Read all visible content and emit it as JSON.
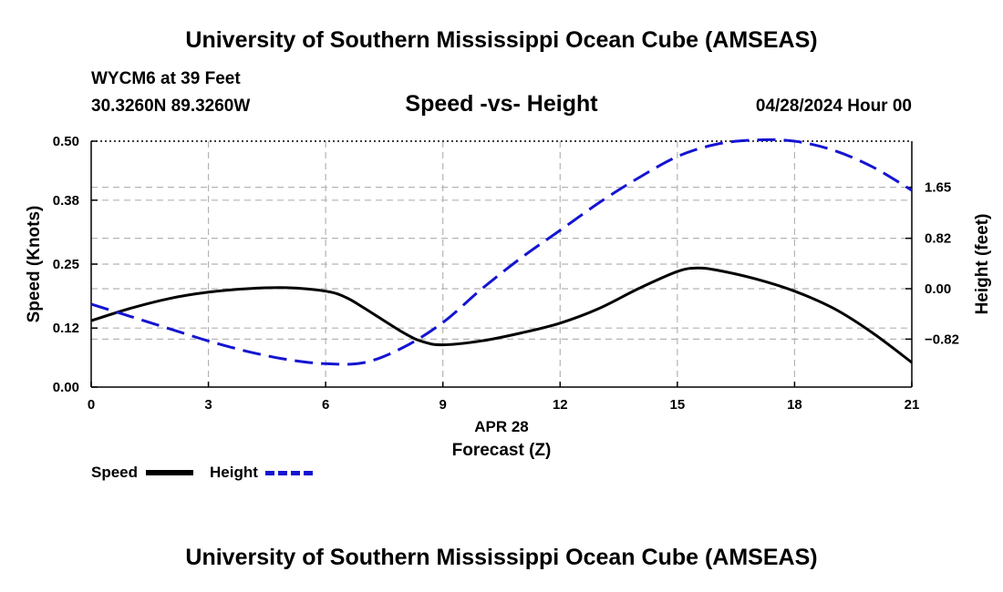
{
  "header": {
    "title": "University of Southern Mississippi Ocean Cube (AMSEAS)",
    "station": "WYCM6 at 39 Feet",
    "coords": "30.3260N  89.3260W",
    "subtitle": "Speed -vs- Height",
    "datetime": "04/28/2024 Hour 00"
  },
  "footer": {
    "title": "University of Southern Mississippi Ocean Cube (AMSEAS)"
  },
  "legend": {
    "speed_label": "Speed",
    "height_label": "Height"
  },
  "colors": {
    "speed": "#000000",
    "height": "#1414d2",
    "grid": "#b4b4b4"
  },
  "chart_data": {
    "type": "line",
    "xlabel": "Forecast (Z)",
    "xlabel_date": "APR 28",
    "ylabel_left": "Speed (Knots)",
    "ylabel_right": "Height (feet)",
    "xlim": [
      0,
      21
    ],
    "x_ticks": [
      0,
      3,
      6,
      9,
      12,
      15,
      18,
      21
    ],
    "ylim_left": [
      0,
      0.5
    ],
    "y_ticks_left": [
      0.0,
      0.12,
      0.25,
      0.38,
      0.5
    ],
    "y_ticks_left_labels": [
      "0.00",
      "0.12",
      "0.25",
      "0.38",
      "0.50"
    ],
    "ylim_right": [
      -1.6,
      2.4
    ],
    "y_ticks_right": [
      -0.82,
      0.0,
      0.82,
      1.65
    ],
    "y_ticks_right_labels": [
      "−0.82",
      "0.00",
      "0.82",
      "1.65"
    ],
    "grid": true,
    "series": [
      {
        "name": "Speed",
        "axis": "left",
        "style": "solid",
        "x": [
          0,
          1,
          2,
          3,
          4,
          5,
          6,
          6.5,
          7,
          8,
          8.5,
          9,
          10,
          11,
          12,
          13,
          14,
          15,
          15.5,
          16,
          17,
          18,
          19,
          20,
          21
        ],
        "y": [
          0.135,
          0.16,
          0.18,
          0.193,
          0.2,
          0.202,
          0.195,
          0.183,
          0.16,
          0.11,
          0.092,
          0.086,
          0.094,
          0.11,
          0.13,
          0.16,
          0.2,
          0.235,
          0.242,
          0.238,
          0.22,
          0.195,
          0.16,
          0.11,
          0.05
        ]
      },
      {
        "name": "Height",
        "axis": "right",
        "style": "dashed",
        "x": [
          0,
          1,
          2,
          3,
          4,
          5,
          6,
          7,
          8,
          9,
          10,
          11,
          12,
          13,
          14,
          15,
          16,
          17,
          18,
          19,
          20,
          21
        ],
        "y": [
          -0.25,
          -0.45,
          -0.65,
          -0.85,
          -1.02,
          -1.15,
          -1.22,
          -1.2,
          -0.95,
          -0.55,
          0.0,
          0.5,
          0.95,
          1.4,
          1.8,
          2.15,
          2.35,
          2.42,
          2.4,
          2.25,
          1.98,
          1.6
        ]
      }
    ]
  }
}
